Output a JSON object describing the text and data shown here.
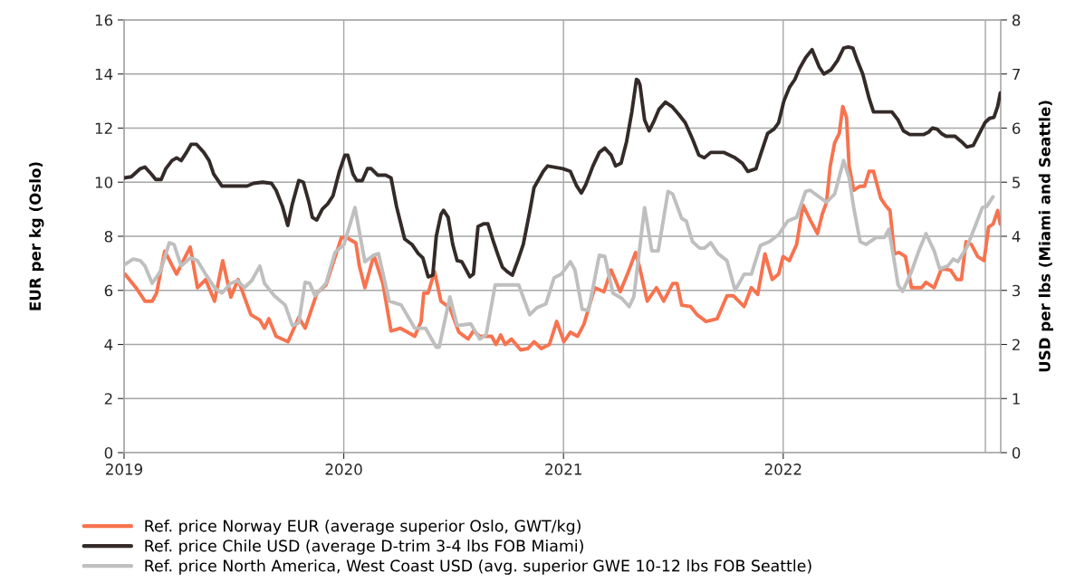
{
  "chart_data": {
    "type": "line",
    "ylabel": "EUR per kg (Oslo)",
    "y2label": "USD per lbs (Miami and Seattle)",
    "xlim": [
      2019,
      2022.99
    ],
    "xticks": [
      2019,
      2020,
      2021,
      2022
    ],
    "ylim": [
      0,
      16
    ],
    "yticks": [
      0,
      2,
      4,
      6,
      8,
      10,
      12,
      14,
      16
    ],
    "y2lim": [
      0,
      8
    ],
    "y2ticks": [
      0,
      1,
      2,
      3,
      4,
      5,
      6,
      7,
      8
    ],
    "grid": true,
    "legend": "bottom",
    "marker": "none",
    "line_style": "solid",
    "ref_lines": [
      {
        "axis": "x",
        "value": 2022.92,
        "color": "#a6a6a6"
      }
    ],
    "series": [
      {
        "name": "Ref. price Norway EUR (average superior Oslo, GWT/kg)",
        "color": "#f7734f",
        "x": [
          2019.004,
          2019.054,
          2019.095,
          2019.128,
          2019.148,
          2019.185,
          2019.239,
          2019.301,
          2019.334,
          2019.371,
          2019.412,
          2019.449,
          2019.486,
          2019.519,
          2019.577,
          2019.618,
          2019.639,
          2019.659,
          2019.692,
          2019.746,
          2019.795,
          2019.824,
          2019.878,
          2019.919,
          2019.989,
          2020.014,
          2020.055,
          2020.071,
          2020.096,
          2020.137,
          2020.178,
          2020.215,
          2020.257,
          2020.302,
          2020.323,
          2020.352,
          2020.364,
          2020.384,
          2020.413,
          2020.442,
          2020.483,
          2020.524,
          2020.566,
          2020.59,
          2020.619,
          2020.673,
          2020.693,
          2020.714,
          2020.735,
          2020.763,
          2020.805,
          2020.838,
          2020.866,
          2020.899,
          2020.936,
          2020.969,
          2021.002,
          2021.031,
          2021.064,
          2021.093,
          2021.142,
          2021.184,
          2021.217,
          2021.258,
          2021.291,
          2021.328,
          2021.348,
          2021.381,
          2021.423,
          2021.456,
          2021.497,
          2021.517,
          2021.538,
          2021.579,
          2021.608,
          2021.649,
          2021.699,
          2021.744,
          2021.773,
          2021.822,
          2021.855,
          2021.884,
          2021.917,
          2021.95,
          2021.979,
          2021.999,
          2022.028,
          2022.061,
          2022.09,
          2022.123,
          2022.156,
          2022.177,
          2022.197,
          2022.214,
          2022.234,
          2022.255,
          2022.271,
          2022.288,
          2022.3,
          2022.321,
          2022.35,
          2022.37,
          2022.391,
          2022.411,
          2022.444,
          2022.465,
          2022.486,
          2022.506,
          2022.527,
          2022.556,
          2022.584,
          2022.63,
          2022.65,
          2022.687,
          2022.72,
          2022.762,
          2022.79,
          2022.811,
          2022.832,
          2022.856,
          2022.885,
          2022.914,
          2022.935,
          2022.955,
          2022.976,
          2022.988
        ],
        "values": [
          6.6,
          6.1,
          5.6,
          5.6,
          5.9,
          7.45,
          6.6,
          7.6,
          6.1,
          6.4,
          5.6,
          7.1,
          5.75,
          6.4,
          5.1,
          4.9,
          4.6,
          4.95,
          4.3,
          4.1,
          5.0,
          4.6,
          5.9,
          6.2,
          7.95,
          7.95,
          7.75,
          6.9,
          6.1,
          7.3,
          6.25,
          4.5,
          4.6,
          4.4,
          4.3,
          4.85,
          5.9,
          5.9,
          6.7,
          5.6,
          5.35,
          4.45,
          4.2,
          4.5,
          4.3,
          4.3,
          4.0,
          4.35,
          4.0,
          4.2,
          3.8,
          3.85,
          4.1,
          3.85,
          4.0,
          4.85,
          4.1,
          4.45,
          4.3,
          4.75,
          6.1,
          5.95,
          6.75,
          5.95,
          6.6,
          7.4,
          6.8,
          5.6,
          6.1,
          5.6,
          6.25,
          6.25,
          5.45,
          5.4,
          5.1,
          4.85,
          4.95,
          5.8,
          5.8,
          5.4,
          6.1,
          5.85,
          7.35,
          6.4,
          6.6,
          7.25,
          7.1,
          7.7,
          9.15,
          8.6,
          8.1,
          8.8,
          9.25,
          10.6,
          11.45,
          11.8,
          12.8,
          12.4,
          10.6,
          9.7,
          9.85,
          9.85,
          10.4,
          10.4,
          9.4,
          9.15,
          8.95,
          7.35,
          7.4,
          7.25,
          6.1,
          6.1,
          6.3,
          6.1,
          6.8,
          6.75,
          6.4,
          6.4,
          7.8,
          7.7,
          7.25,
          7.1,
          8.35,
          8.45,
          8.95,
          8.45
        ]
      },
      {
        "name": "Ref. price Chile USD (average D-trim 3-4 lbs FOB Miami)",
        "color": "#342b29",
        "axis": "y2",
        "x": [
          2019.0,
          2019.033,
          2019.074,
          2019.095,
          2019.124,
          2019.144,
          2019.169,
          2019.19,
          2019.218,
          2019.239,
          2019.26,
          2019.284,
          2019.305,
          2019.33,
          2019.363,
          2019.387,
          2019.408,
          2019.445,
          2019.507,
          2019.56,
          2019.589,
          2019.63,
          2019.671,
          2019.692,
          2019.721,
          2019.745,
          2019.766,
          2019.795,
          2019.816,
          2019.84,
          2019.857,
          2019.877,
          2019.902,
          2019.927,
          2019.951,
          2019.98,
          2020.005,
          2020.018,
          2020.042,
          2020.059,
          2020.084,
          2020.108,
          2020.125,
          2020.154,
          2020.191,
          2020.215,
          2020.24,
          2020.277,
          2020.31,
          2020.339,
          2020.36,
          2020.384,
          2020.405,
          2020.421,
          2020.442,
          2020.454,
          2020.475,
          2020.496,
          2020.516,
          2020.537,
          2020.557,
          2020.574,
          2020.59,
          2020.611,
          2020.636,
          2020.656,
          2020.681,
          2020.702,
          2020.722,
          2020.743,
          2020.767,
          2020.792,
          2020.817,
          2020.846,
          2020.866,
          2020.908,
          2020.928,
          2020.998,
          2021.031,
          2021.06,
          2021.081,
          2021.101,
          2021.134,
          2021.163,
          2021.188,
          2021.217,
          2021.237,
          2021.262,
          2021.287,
          2021.311,
          2021.332,
          2021.34,
          2021.348,
          2021.369,
          2021.39,
          2021.414,
          2021.435,
          2021.464,
          2021.493,
          2021.525,
          2021.554,
          2021.587,
          2021.616,
          2021.641,
          2021.67,
          2021.731,
          2021.781,
          2021.814,
          2021.839,
          2021.876,
          2021.896,
          2021.929,
          2021.958,
          2021.979,
          2022.003,
          2022.028,
          2022.053,
          2022.074,
          2022.102,
          2022.131,
          2022.164,
          2022.185,
          2022.218,
          2022.247,
          2022.275,
          2022.296,
          2022.317,
          2022.337,
          2022.362,
          2022.391,
          2022.411,
          2022.453,
          2022.494,
          2022.523,
          2022.547,
          2022.576,
          2022.638,
          2022.663,
          2022.679,
          2022.7,
          2022.72,
          2022.741,
          2022.782,
          2022.811,
          2022.836,
          2022.865,
          2022.893,
          2022.918,
          2022.939,
          2022.959,
          2022.976,
          2022.988
        ],
        "values": [
          5.08,
          5.1,
          5.25,
          5.28,
          5.15,
          5.05,
          5.05,
          5.25,
          5.4,
          5.45,
          5.4,
          5.55,
          5.7,
          5.7,
          5.55,
          5.4,
          5.15,
          4.93,
          4.93,
          4.93,
          4.98,
          5.0,
          4.98,
          4.85,
          4.55,
          4.2,
          4.6,
          5.03,
          5.0,
          4.65,
          4.35,
          4.3,
          4.5,
          4.6,
          4.75,
          5.2,
          5.5,
          5.5,
          5.15,
          5.03,
          5.03,
          5.25,
          5.25,
          5.13,
          5.13,
          5.08,
          4.55,
          3.95,
          3.85,
          3.68,
          3.6,
          3.25,
          3.28,
          4.0,
          4.4,
          4.48,
          4.35,
          3.85,
          3.55,
          3.53,
          3.38,
          3.25,
          3.3,
          4.18,
          4.23,
          4.23,
          3.9,
          3.65,
          3.43,
          3.35,
          3.28,
          3.55,
          3.85,
          4.45,
          4.9,
          5.2,
          5.3,
          5.25,
          5.2,
          4.93,
          4.8,
          4.95,
          5.3,
          5.55,
          5.63,
          5.5,
          5.3,
          5.35,
          5.75,
          6.3,
          6.9,
          6.88,
          6.8,
          6.15,
          5.95,
          6.15,
          6.35,
          6.48,
          6.4,
          6.25,
          6.1,
          5.8,
          5.5,
          5.45,
          5.55,
          5.55,
          5.45,
          5.35,
          5.2,
          5.25,
          5.5,
          5.9,
          5.98,
          6.1,
          6.5,
          6.75,
          6.9,
          7.1,
          7.3,
          7.45,
          7.13,
          7.0,
          7.08,
          7.25,
          7.48,
          7.5,
          7.48,
          7.25,
          7.0,
          6.55,
          6.3,
          6.3,
          6.3,
          6.15,
          5.95,
          5.88,
          5.88,
          5.93,
          6.0,
          5.98,
          5.9,
          5.85,
          5.85,
          5.75,
          5.65,
          5.68,
          5.9,
          6.1,
          6.18,
          6.2,
          6.4,
          6.65
        ]
      },
      {
        "name": "Ref. price North America, West Coast USD (avg. superior GWE 10-12 lbs FOB Seattle)",
        "color": "#bfbfbf",
        "axis": "y2",
        "x": [
          2019.004,
          2019.041,
          2019.074,
          2019.095,
          2019.128,
          2019.165,
          2019.206,
          2019.227,
          2019.26,
          2019.301,
          2019.334,
          2019.371,
          2019.412,
          2019.445,
          2019.486,
          2019.515,
          2019.548,
          2019.581,
          2019.618,
          2019.639,
          2019.684,
          2019.733,
          2019.766,
          2019.795,
          2019.824,
          2019.845,
          2019.869,
          2019.919,
          2019.96,
          2020.001,
          2020.051,
          2020.071,
          2020.096,
          2020.137,
          2020.158,
          2020.207,
          2020.261,
          2020.323,
          2020.372,
          2020.421,
          2020.434,
          2020.483,
          2020.516,
          2020.578,
          2020.619,
          2020.648,
          2020.689,
          2020.796,
          2020.846,
          2020.879,
          2020.92,
          2020.957,
          2020.99,
          2021.031,
          2021.052,
          2021.085,
          2021.114,
          2021.163,
          2021.188,
          2021.225,
          2021.266,
          2021.299,
          2021.32,
          2021.369,
          2021.402,
          2021.431,
          2021.476,
          2021.497,
          2021.538,
          2021.559,
          2021.587,
          2021.62,
          2021.641,
          2021.67,
          2021.703,
          2021.744,
          2021.781,
          2021.822,
          2021.855,
          2021.896,
          2021.937,
          2021.979,
          2022.02,
          2022.061,
          2022.102,
          2022.123,
          2022.197,
          2022.234,
          2022.275,
          2022.3,
          2022.321,
          2022.35,
          2022.378,
          2022.424,
          2022.461,
          2022.481,
          2022.506,
          2022.523,
          2022.543,
          2022.584,
          2022.617,
          2022.65,
          2022.687,
          2022.712,
          2022.749,
          2022.774,
          2022.795,
          2022.836,
          2022.873,
          2022.906,
          2022.926,
          2022.955
        ],
        "values": [
          3.48,
          3.58,
          3.55,
          3.45,
          3.13,
          3.35,
          3.88,
          3.85,
          3.45,
          3.6,
          3.55,
          3.3,
          3.05,
          2.95,
          3.13,
          3.18,
          3.05,
          3.18,
          3.45,
          3.13,
          2.9,
          2.73,
          2.35,
          2.4,
          3.15,
          3.13,
          2.9,
          3.13,
          3.7,
          3.85,
          4.53,
          4.08,
          3.53,
          3.65,
          3.68,
          2.8,
          2.73,
          2.3,
          2.3,
          1.95,
          1.95,
          2.88,
          2.35,
          2.38,
          2.1,
          2.18,
          3.1,
          3.1,
          2.55,
          2.68,
          2.75,
          3.23,
          3.3,
          3.53,
          3.38,
          2.65,
          2.63,
          3.65,
          3.63,
          2.95,
          2.85,
          2.7,
          2.88,
          4.53,
          3.73,
          3.73,
          4.83,
          4.78,
          4.33,
          4.28,
          3.9,
          3.78,
          3.78,
          3.88,
          3.68,
          3.55,
          3.0,
          3.3,
          3.3,
          3.83,
          3.9,
          4.03,
          4.28,
          4.35,
          4.83,
          4.85,
          4.63,
          4.78,
          5.4,
          5.08,
          4.53,
          3.9,
          3.85,
          3.98,
          3.98,
          4.13,
          3.53,
          3.1,
          2.98,
          3.35,
          3.73,
          4.05,
          3.73,
          3.4,
          3.45,
          3.58,
          3.53,
          3.8,
          4.18,
          4.53,
          4.55,
          4.73
        ]
      }
    ]
  }
}
